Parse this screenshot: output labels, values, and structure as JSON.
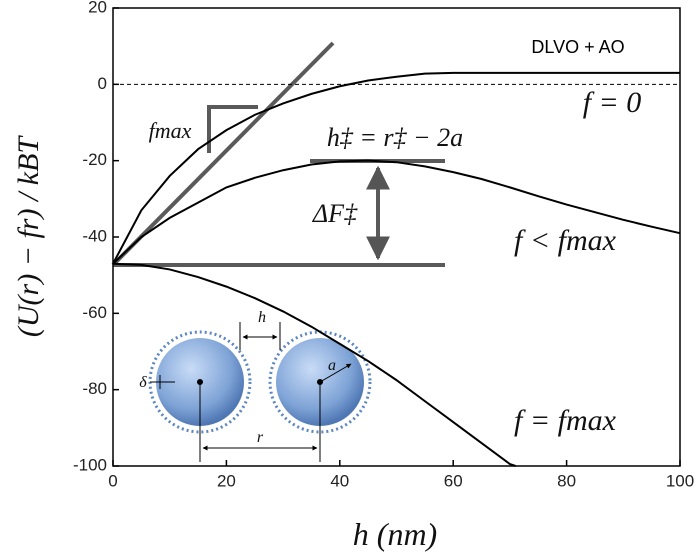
{
  "chart_data": {
    "type": "line",
    "xlabel": "h (nm)",
    "ylabel": "(U(r) − fr) / kBT",
    "annotations": {
      "system": "DLVO + AO",
      "barrier_position": "h‡ = r‡ − 2a",
      "barrier_height": "ΔF‡",
      "slope": "fmax",
      "inset_gap": "h",
      "inset_shell": "δ",
      "inset_radius": "a",
      "inset_distance": "r"
    },
    "xlim": [
      0,
      100
    ],
    "xticks": [
      0,
      20,
      40,
      60,
      80,
      100
    ],
    "ylim": [
      -100,
      20
    ],
    "yticks": [
      20,
      0,
      -20,
      -40,
      -60,
      -80,
      -100
    ],
    "reference_line": 0,
    "series": [
      {
        "name": "f = 0",
        "color": "#000000",
        "x": [
          0,
          2.5,
          5,
          10,
          15,
          20,
          25,
          30,
          35,
          40,
          45,
          50,
          55,
          60,
          65,
          70,
          80,
          90,
          100
        ],
        "values": [
          -47,
          -40,
          -33,
          -24,
          -17,
          -12,
          -8,
          -5,
          -2.5,
          -0.5,
          1,
          2,
          2.8,
          3,
          3,
          3,
          3,
          3,
          3
        ]
      },
      {
        "name": "f < fmax",
        "color": "#000000",
        "x": [
          0,
          5,
          10,
          15,
          20,
          25,
          30,
          35,
          40,
          45,
          50,
          55,
          60,
          65,
          70,
          75,
          80,
          85,
          90,
          95,
          100
        ],
        "values": [
          -47,
          -40,
          -35,
          -31,
          -27,
          -24.5,
          -22.5,
          -21,
          -20.2,
          -20,
          -20.4,
          -21.5,
          -23,
          -24.8,
          -27,
          -29.3,
          -31.5,
          -33.5,
          -35.5,
          -37.3,
          -39
        ]
      },
      {
        "name": "f = fmax",
        "color": "#000000",
        "x": [
          0,
          5,
          10,
          15,
          20,
          25,
          30,
          35,
          40,
          45,
          50,
          55,
          60,
          65,
          70,
          71
        ],
        "values": [
          -47,
          -47.3,
          -48.5,
          -50.5,
          -53,
          -56,
          -59.5,
          -63.5,
          -68,
          -72.5,
          -77.5,
          -83,
          -88.5,
          -94,
          -99.5,
          -100
        ]
      }
    ]
  }
}
